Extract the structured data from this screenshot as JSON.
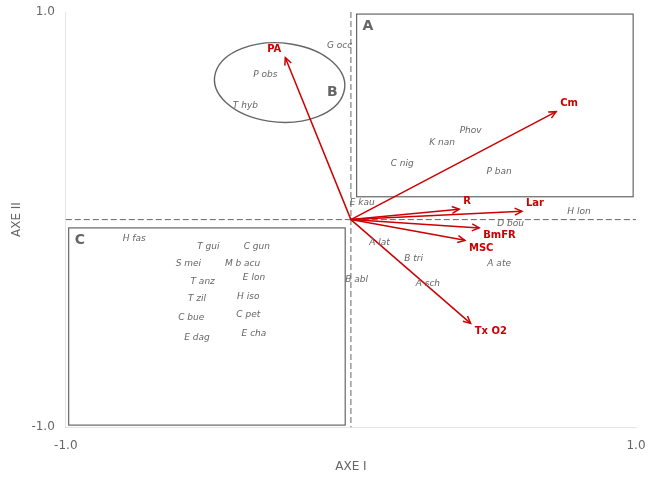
{
  "chart_data": {
    "type": "biplot",
    "xlabel": "AXE I",
    "ylabel": "AXE II",
    "xlim": [
      -1.0,
      1.0
    ],
    "ylim": [
      -1.0,
      1.0
    ],
    "xticks": [
      {
        "value": -1.0,
        "label": "-1.0"
      },
      {
        "value": 1.0,
        "label": "1.0"
      }
    ],
    "yticks": [
      {
        "value": -1.0,
        "label": "-1.0"
      },
      {
        "value": 1.0,
        "label": "1.0"
      }
    ],
    "grid": false,
    "arrows": [
      {
        "name": "PA",
        "x": -0.23,
        "y": 0.78,
        "color": "#cc0000"
      },
      {
        "name": "Cm",
        "x": 0.72,
        "y": 0.52,
        "color": "#cc0000"
      },
      {
        "name": "R",
        "x": 0.38,
        "y": 0.05,
        "color": "#cc0000"
      },
      {
        "name": "Lar",
        "x": 0.6,
        "y": 0.04,
        "color": "#cc0000"
      },
      {
        "name": "BmFR",
        "x": 0.45,
        "y": -0.04,
        "color": "#cc0000"
      },
      {
        "name": "MSC",
        "x": 0.4,
        "y": -0.1,
        "color": "#cc0000"
      },
      {
        "name": "Tx O2",
        "x": 0.42,
        "y": -0.5,
        "color": "#cc0000"
      }
    ],
    "points": [
      {
        "name": "G occ",
        "x": -0.04,
        "y": 0.84
      },
      {
        "name": "P obs",
        "x": -0.3,
        "y": 0.7
      },
      {
        "name": "T hyb",
        "x": -0.37,
        "y": 0.55
      },
      {
        "name": "Phov",
        "x": 0.42,
        "y": 0.43
      },
      {
        "name": "K nan",
        "x": 0.32,
        "y": 0.37
      },
      {
        "name": "C nig",
        "x": 0.18,
        "y": 0.27
      },
      {
        "name": "P ban",
        "x": 0.52,
        "y": 0.23
      },
      {
        "name": "E kau",
        "x": 0.04,
        "y": 0.08
      },
      {
        "name": "D bou",
        "x": 0.56,
        "y": -0.02
      },
      {
        "name": "H lon",
        "x": 0.8,
        "y": 0.04
      },
      {
        "name": "A lat",
        "x": 0.1,
        "y": -0.11
      },
      {
        "name": "B tri",
        "x": 0.22,
        "y": -0.19
      },
      {
        "name": "A ate",
        "x": 0.52,
        "y": -0.21
      },
      {
        "name": "B abl",
        "x": 0.02,
        "y": -0.29
      },
      {
        "name": "A sch",
        "x": 0.27,
        "y": -0.31
      },
      {
        "name": "H fas",
        "x": -0.76,
        "y": -0.09
      },
      {
        "name": "T gui",
        "x": -0.5,
        "y": -0.13
      },
      {
        "name": "C gun",
        "x": -0.33,
        "y": -0.13
      },
      {
        "name": "S mei",
        "x": -0.57,
        "y": -0.21
      },
      {
        "name": "M b acu",
        "x": -0.38,
        "y": -0.21
      },
      {
        "name": "T anz",
        "x": -0.52,
        "y": -0.3
      },
      {
        "name": "E lon",
        "x": -0.34,
        "y": -0.28
      },
      {
        "name": "T zil",
        "x": -0.54,
        "y": -0.38
      },
      {
        "name": "H iso",
        "x": -0.36,
        "y": -0.37
      },
      {
        "name": "C bue",
        "x": -0.56,
        "y": -0.47
      },
      {
        "name": "C pet",
        "x": -0.36,
        "y": -0.46
      },
      {
        "name": "E dag",
        "x": -0.54,
        "y": -0.57
      },
      {
        "name": "E cha",
        "x": -0.34,
        "y": -0.55
      }
    ],
    "ellipse": {
      "label": "B",
      "cx": -0.25,
      "cy": 0.66,
      "width": 0.46,
      "height": 0.38,
      "angle": -12
    },
    "boxes": [
      {
        "label": "A",
        "x0": 0.02,
        "y0": 0.11,
        "x1": 0.99,
        "y1": 0.99
      },
      {
        "label": "C",
        "x0": -0.99,
        "y0": -0.99,
        "x1": -0.02,
        "y1": -0.04
      }
    ]
  }
}
